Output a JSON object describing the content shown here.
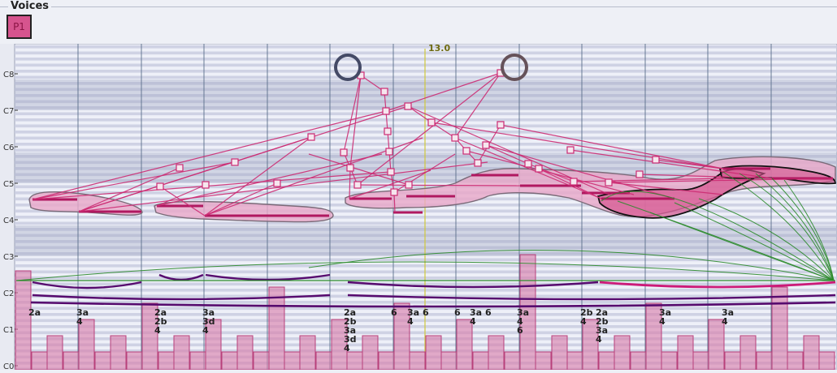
{
  "panel": {
    "title": "Voices"
  },
  "voices": [
    {
      "label": "P1",
      "color": "#d6548e"
    }
  ],
  "score": {
    "playhead_label": "13.0",
    "pitch_labels": [
      "C8",
      "C7",
      "C6",
      "C5",
      "C4",
      "C3",
      "C2",
      "C1",
      "C0"
    ],
    "analysis_labels": [
      {
        "lines": [
          "2a"
        ]
      },
      {
        "lines": [
          "3a",
          "4"
        ]
      },
      {
        "lines": [
          "2a",
          "2b",
          "4"
        ]
      },
      {
        "lines": [
          "3a",
          "3d",
          "4"
        ]
      },
      {
        "lines": [
          "2a",
          "2b",
          "3a",
          "3d",
          "4"
        ]
      },
      {
        "lines": [
          "6"
        ]
      },
      {
        "lines": [
          "3a",
          "4"
        ]
      },
      {
        "lines": [
          "6"
        ]
      },
      {
        "lines": [
          "6"
        ]
      },
      {
        "lines": [
          "3a",
          "4"
        ]
      },
      {
        "lines": [
          "6"
        ]
      },
      {
        "lines": [
          "3a",
          "4",
          "6"
        ]
      },
      {
        "lines": [
          "2b",
          "4"
        ]
      },
      {
        "lines": [
          "2a",
          "2b",
          "3a",
          "4"
        ]
      },
      {
        "lines": [
          "3a",
          "4"
        ]
      },
      {
        "lines": [
          "3a",
          "4"
        ]
      }
    ],
    "colors": {
      "accent": "#d6548e",
      "notes": "#cc2a72",
      "arc_purple": "#560a6e",
      "arc_pink": "#cc1a78",
      "green": "#2a8a2a",
      "grid": "#5a6e8a",
      "playhead": "#cfc83a"
    }
  }
}
